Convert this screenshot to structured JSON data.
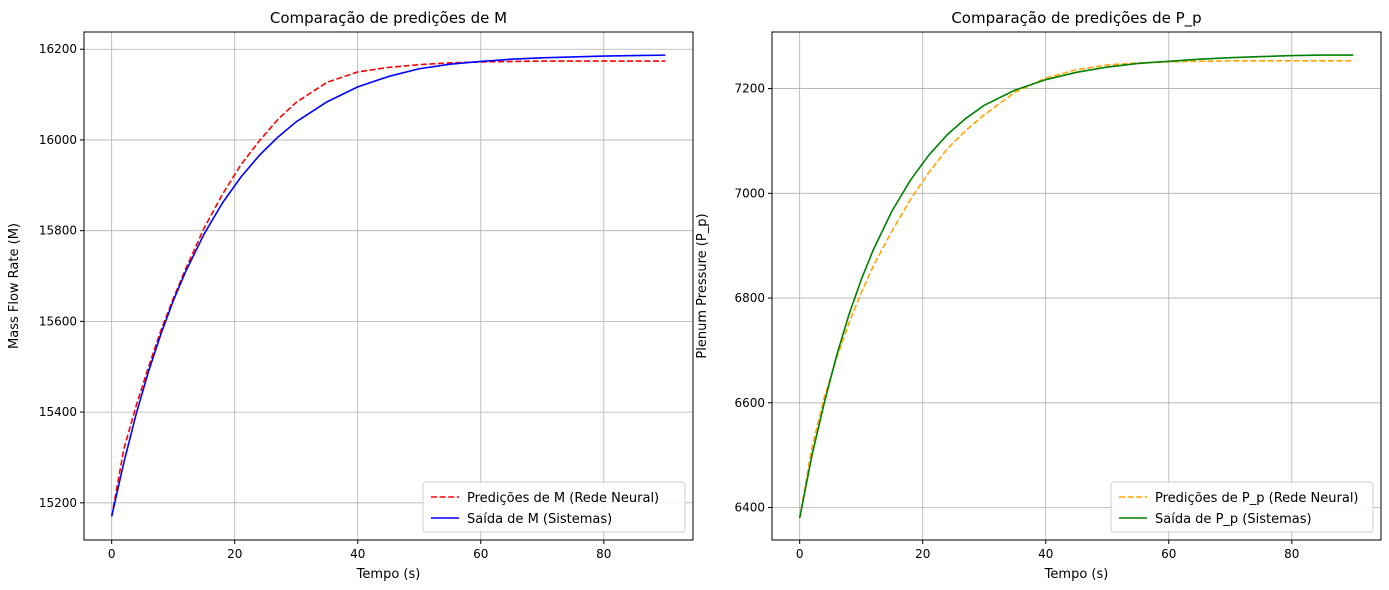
{
  "chart_data": [
    {
      "type": "line",
      "title": "Comparação de predições de M",
      "xlabel": "Tempo (s)",
      "ylabel": "Mass Flow Rate (M)",
      "xlim": [
        -4.5,
        94.5
      ],
      "ylim": [
        15118,
        16238
      ],
      "xticks": [
        0,
        20,
        40,
        60,
        80
      ],
      "xtick_labels": [
        "0",
        "20",
        "40",
        "60",
        "80"
      ],
      "yticks": [
        15200,
        15400,
        15600,
        15800,
        16000,
        16200
      ],
      "ytick_labels": [
        "15200",
        "15400",
        "15600",
        "15800",
        "16000",
        "16200"
      ],
      "grid": true,
      "legend_position": "bottom-right",
      "x": [
        0,
        2,
        4,
        6,
        8,
        10,
        12,
        15,
        18,
        21,
        24,
        27,
        30,
        35,
        40,
        45,
        50,
        55,
        60,
        65,
        70,
        75,
        80,
        85,
        90
      ],
      "series": [
        {
          "name": "Predições de M (Rede Neural)",
          "color": "#ff0000",
          "dash": "dashed",
          "values": [
            15170,
            15320,
            15415,
            15500,
            15580,
            15650,
            15715,
            15805,
            15880,
            15945,
            15998,
            16045,
            16083,
            16127,
            16150,
            16160,
            16166,
            16170,
            16172,
            16173,
            16174,
            16174,
            16174,
            16174,
            16174
          ]
        },
        {
          "name": "Saída de M (Sistemas)",
          "color": "#0000ff",
          "dash": "solid",
          "values": [
            15170,
            15290,
            15397,
            15490,
            15572,
            15645,
            15709,
            15792,
            15861,
            15918,
            15966,
            16006,
            16040,
            16084,
            16117,
            16140,
            16157,
            16167,
            16173,
            16178,
            16181,
            16183,
            16185,
            16186,
            16187
          ]
        }
      ]
    },
    {
      "type": "line",
      "title": "Comparação de predições de P_p",
      "xlabel": "Tempo (s)",
      "ylabel": "Plenum Pressure (P_p)",
      "xlim": [
        -4.5,
        94.5
      ],
      "ylim": [
        6338,
        7308
      ],
      "xticks": [
        0,
        20,
        40,
        60,
        80
      ],
      "xtick_labels": [
        "0",
        "20",
        "40",
        "60",
        "80"
      ],
      "yticks": [
        6400,
        6600,
        6800,
        7000,
        7200
      ],
      "ytick_labels": [
        "6400",
        "6600",
        "6800",
        "7000",
        "7200"
      ],
      "grid": true,
      "legend_position": "bottom-right",
      "x": [
        0,
        2,
        4,
        6,
        8,
        10,
        12,
        15,
        18,
        21,
        24,
        27,
        30,
        35,
        40,
        45,
        50,
        55,
        60,
        65,
        70,
        75,
        80,
        85,
        90
      ],
      "series": [
        {
          "name": "Predições de P_p (Rede Neural)",
          "color": "#ffa500",
          "dash": "dashed",
          "values": [
            6380,
            6515,
            6610,
            6685,
            6752,
            6810,
            6862,
            6928,
            6988,
            7040,
            7085,
            7120,
            7150,
            7193,
            7220,
            7236,
            7245,
            7249,
            7251,
            7252,
            7253,
            7253,
            7253,
            7253,
            7253
          ]
        },
        {
          "name": "Saída de P_p (Sistemas)",
          "color": "#008000",
          "dash": "solid",
          "values": [
            6380,
            6500,
            6600,
            6690,
            6768,
            6835,
            6893,
            6966,
            7025,
            7073,
            7112,
            7143,
            7168,
            7197,
            7217,
            7231,
            7241,
            7248,
            7252,
            7256,
            7259,
            7261,
            7263,
            7264,
            7264
          ]
        }
      ]
    }
  ]
}
